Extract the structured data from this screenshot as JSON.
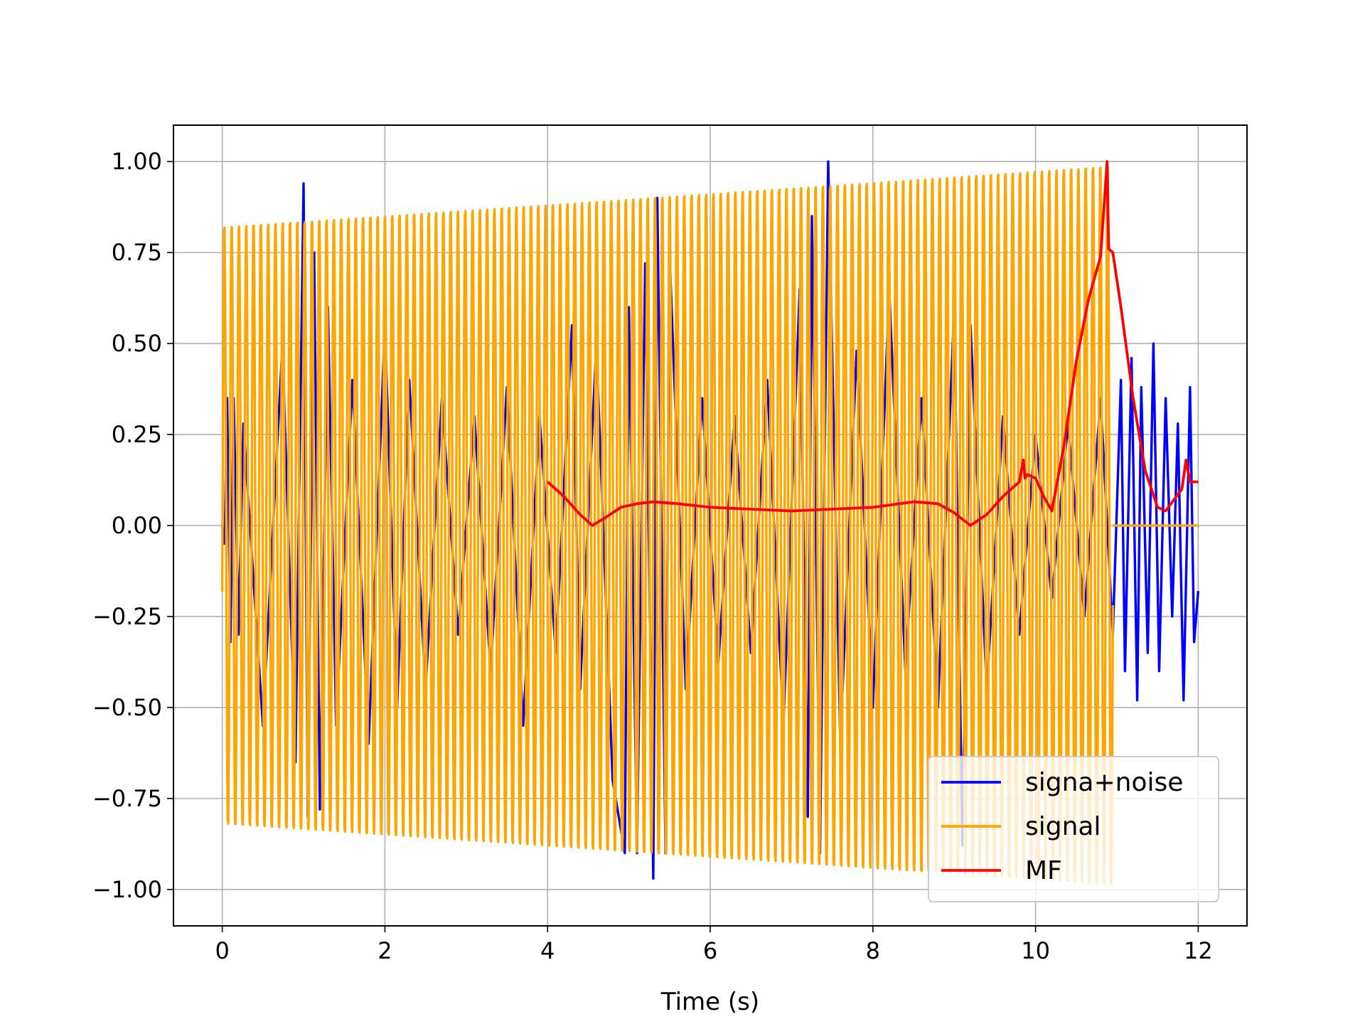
{
  "chart_data": {
    "type": "line",
    "title": "",
    "xlabel": "Time (s)",
    "ylabel": "",
    "xlim": [
      -0.6,
      12.6
    ],
    "ylim": [
      -1.1,
      1.1
    ],
    "grid": true,
    "legend_position": "lower-right",
    "x_ticks": [
      0,
      2,
      4,
      6,
      8,
      10,
      12
    ],
    "x_tick_labels": [
      "0",
      "2",
      "4",
      "6",
      "8",
      "10",
      "12"
    ],
    "y_ticks": [
      1.0,
      0.75,
      0.5,
      0.25,
      0.0,
      -0.25,
      -0.5,
      -0.75,
      -1.0
    ],
    "y_tick_labels": [
      "1.00",
      "0.75",
      "0.50",
      "0.25",
      "0.00",
      "−0.25",
      "−0.50",
      "−0.75",
      "−1.00"
    ],
    "series": [
      {
        "name": "signa+noise",
        "color": "#0000ff",
        "x": [
          0.0,
          0.03,
          0.06,
          0.1,
          0.14,
          0.2,
          0.26,
          0.5,
          0.74,
          0.9,
          1.0,
          1.05,
          1.13,
          1.2,
          1.3,
          1.4,
          1.6,
          1.8,
          2.0,
          2.15,
          2.3,
          2.5,
          2.7,
          2.9,
          3.1,
          3.3,
          3.5,
          3.7,
          3.9,
          4.1,
          4.3,
          4.4,
          4.6,
          4.8,
          4.95,
          5.0,
          5.1,
          5.2,
          5.3,
          5.35,
          5.45,
          5.5,
          5.7,
          5.9,
          6.1,
          6.3,
          6.5,
          6.7,
          6.9,
          7.1,
          7.2,
          7.25,
          7.35,
          7.45,
          7.6,
          7.8,
          8.0,
          8.2,
          8.4,
          8.6,
          8.8,
          9.0,
          9.1,
          9.2,
          9.4,
          9.6,
          9.8,
          10.0,
          10.2,
          10.4,
          10.6,
          10.8,
          10.95,
          11.05,
          11.1,
          11.18,
          11.25,
          11.3,
          11.38,
          11.45,
          11.52,
          11.6,
          11.68,
          11.75,
          11.82,
          11.9,
          11.95,
          12.0
        ],
        "y": [
          0.0,
          -0.05,
          0.35,
          -0.32,
          0.35,
          -0.3,
          0.28,
          -0.55,
          0.5,
          -0.65,
          0.94,
          -0.8,
          0.75,
          -0.78,
          0.6,
          -0.55,
          0.4,
          -0.6,
          0.55,
          -0.5,
          0.4,
          -0.45,
          0.35,
          -0.3,
          0.3,
          -0.4,
          0.38,
          -0.55,
          0.3,
          -0.35,
          0.55,
          -0.45,
          0.5,
          -0.7,
          -0.9,
          0.6,
          -0.9,
          0.72,
          -0.97,
          0.9,
          -0.9,
          0.75,
          -0.45,
          0.35,
          -0.38,
          0.3,
          -0.35,
          0.4,
          -0.55,
          0.65,
          -0.8,
          0.85,
          -0.9,
          1.0,
          -0.6,
          0.48,
          -0.5,
          0.65,
          -0.4,
          0.35,
          -0.5,
          0.6,
          -0.88,
          0.55,
          -0.45,
          0.3,
          -0.3,
          0.25,
          -0.2,
          0.28,
          -0.25,
          0.35,
          -0.3,
          0.4,
          -0.4,
          0.46,
          -0.48,
          0.38,
          -0.35,
          0.5,
          -0.4,
          0.35,
          -0.25,
          0.28,
          -0.48,
          0.38,
          -0.32,
          -0.18
        ]
      },
      {
        "name": "signal",
        "color": "#ffa500",
        "type": "chirp",
        "t_start": 0.0,
        "t_end": 10.95,
        "amplitude_start": 0.83,
        "amplitude_end": 1.0,
        "cycles": 122,
        "tail_x": [
          10.95,
          12.0
        ],
        "tail_y": [
          0.0,
          0.0
        ]
      },
      {
        "name": "MF",
        "color": "#ff0000",
        "x": [
          4.0,
          4.2,
          4.4,
          4.55,
          4.7,
          4.9,
          5.1,
          5.3,
          5.6,
          6.0,
          6.5,
          7.0,
          7.5,
          8.0,
          8.5,
          8.8,
          9.0,
          9.2,
          9.4,
          9.6,
          9.8,
          9.85,
          9.87,
          9.9,
          10.0,
          10.1,
          10.2,
          10.35,
          10.5,
          10.65,
          10.8,
          10.88,
          10.9,
          10.95,
          11.05,
          11.2,
          11.35,
          11.5,
          11.6,
          11.7,
          11.8,
          11.85,
          11.9,
          12.0
        ],
        "y": [
          0.12,
          0.08,
          0.03,
          0.0,
          0.02,
          0.05,
          0.06,
          0.065,
          0.06,
          0.05,
          0.045,
          0.04,
          0.045,
          0.05,
          0.065,
          0.06,
          0.035,
          0.0,
          0.03,
          0.08,
          0.12,
          0.18,
          0.13,
          0.14,
          0.13,
          0.08,
          0.04,
          0.22,
          0.45,
          0.62,
          0.74,
          1.0,
          0.76,
          0.75,
          0.6,
          0.35,
          0.15,
          0.05,
          0.04,
          0.07,
          0.1,
          0.18,
          0.12,
          0.12
        ]
      }
    ]
  }
}
